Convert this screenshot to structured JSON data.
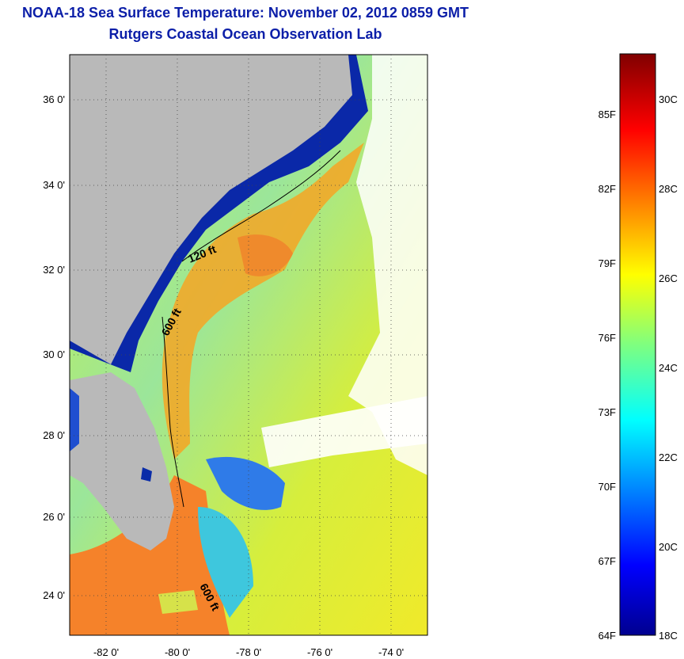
{
  "header": {
    "title": "NOAA-18 Sea Surface Temperature:  November 02, 2012 0859 GMT",
    "subtitle": "Rutgers Coastal Ocean Observation Lab"
  },
  "map": {
    "lon_labels": [
      "-82 0'",
      "-80 0'",
      "-78 0'",
      "-76 0'",
      "-74 0'"
    ],
    "lat_labels": [
      "36 0'",
      "34 0'",
      "32 0'",
      "30 0'",
      "28 0'",
      "26 0'",
      "24 0'"
    ],
    "contour_labels": [
      "120 ft",
      "600 ft",
      "600 ft"
    ],
    "colors": {
      "land": "#b9b9b9",
      "cold": "#00188c",
      "cool": "#1e78ff",
      "mid": "#2fd7c3",
      "warm": "#f7f21e",
      "hot": "#f58a1e"
    }
  },
  "colorbar": {
    "fahrenheit_labels": [
      "85F",
      "82F",
      "79F",
      "76F",
      "73F",
      "70F",
      "67F",
      "64F"
    ],
    "celsius_labels": [
      "30C",
      "28C",
      "26C",
      "24C",
      "22C",
      "20C",
      "18C"
    ]
  }
}
